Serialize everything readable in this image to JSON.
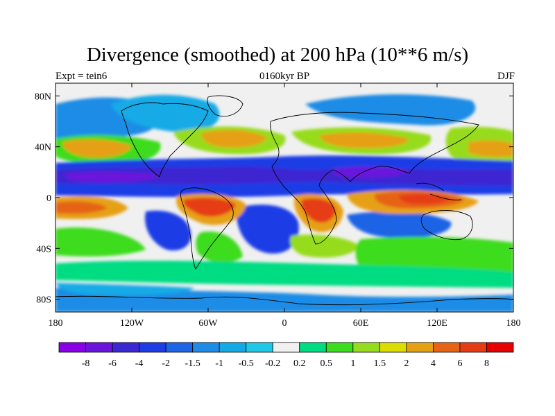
{
  "title": "Divergence (smoothed) at 200 hPa (10**6 m/s)",
  "subtitle_left": "Expt = tein6",
  "subtitle_center": "0160kyr BP",
  "subtitle_right": "DJF",
  "chart_data": {
    "type": "heatmap",
    "variable": "Divergence (smoothed) at 200 hPa",
    "units": "10**6 m/s",
    "experiment": "tein6",
    "period": "0160kyr BP",
    "season": "DJF",
    "x_range": [
      -180,
      180
    ],
    "y_range": [
      -90,
      90
    ],
    "x_ticks": [
      {
        "value": -180,
        "label": "180"
      },
      {
        "value": -120,
        "label": "120W"
      },
      {
        "value": -60,
        "label": "60W"
      },
      {
        "value": 0,
        "label": "0"
      },
      {
        "value": 60,
        "label": "60E"
      },
      {
        "value": 120,
        "label": "120E"
      },
      {
        "value": 180,
        "label": "180"
      }
    ],
    "y_ticks": [
      {
        "value": 80,
        "label": "80N"
      },
      {
        "value": 40,
        "label": "40N"
      },
      {
        "value": 0,
        "label": "0"
      },
      {
        "value": -40,
        "label": "40S"
      },
      {
        "value": -80,
        "label": "80S"
      }
    ],
    "colorbar": {
      "levels": [
        "-8",
        "-6",
        "-4",
        "-2",
        "-1.5",
        "-1",
        "-0.5",
        "-0.2",
        "0.2",
        "0.5",
        "1",
        "1.5",
        "2",
        "4",
        "6",
        "8"
      ],
      "colors": [
        "#8a00e6",
        "#6a14dc",
        "#3c28d2",
        "#1e3ce6",
        "#1e64e6",
        "#1e8ce6",
        "#14aae6",
        "#1ec8e6",
        "#f0f0f0",
        "#00dc82",
        "#3cdc1e",
        "#96dc1e",
        "#dcdc00",
        "#e6a014",
        "#e66414",
        "#e63c14",
        "#e60000"
      ]
    },
    "features": [
      {
        "name": "equatorial convergence band",
        "sign": "negative",
        "value_range": [
          -8,
          -2
        ],
        "lat_range": [
          -5,
          25
        ]
      },
      {
        "name": "south america divergence",
        "sign": "positive",
        "value_range": [
          4,
          8
        ]
      },
      {
        "name": "southern africa divergence",
        "sign": "positive",
        "value_range": [
          4,
          8
        ]
      },
      {
        "name": "maritime continent divergence",
        "sign": "positive",
        "value_range": [
          4,
          8
        ]
      },
      {
        "name": "southern ocean storm track",
        "sign": "positive",
        "value_range": [
          0.5,
          2
        ]
      }
    ]
  }
}
